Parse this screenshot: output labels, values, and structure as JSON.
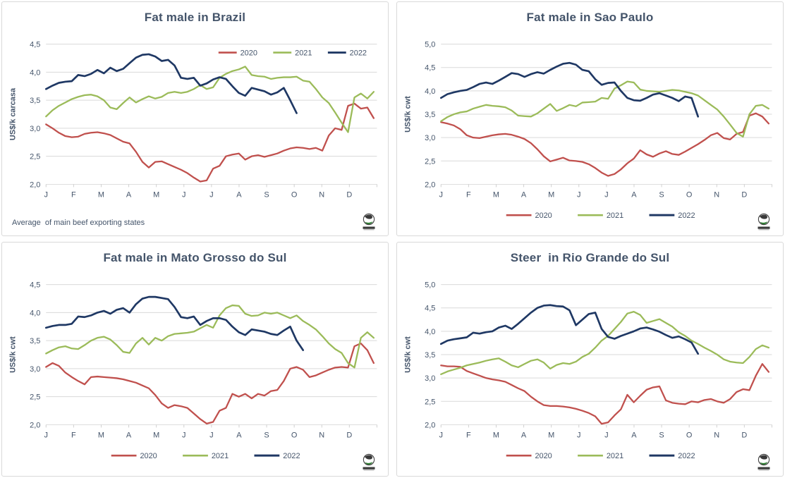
{
  "colors": {
    "series_2020": "#C0504D",
    "series_2021": "#9BBB59",
    "series_2022": "#1F3864",
    "gridline": "#D9D9D9",
    "axis_line": "#D0D0D0",
    "axis_text": "#44546A",
    "title_text": "#44546A",
    "panel_border": "#D9D9D9",
    "logo_dark": "#3A3A3A",
    "logo_green": "#2E7D32"
  },
  "months": [
    "J",
    "F",
    "M",
    "A",
    "M",
    "J",
    "J",
    "A",
    "S",
    "O",
    "N",
    "D"
  ],
  "legend_years": [
    "2020",
    "2021",
    "2022"
  ],
  "footnote": "Average  of main beef exporting states",
  "chart_data": [
    {
      "type": "line",
      "title": "Fat male in Brazil",
      "ylabel": "US$/k carcasa",
      "footnote": "Average  of main beef exporting states",
      "legend_position": "top-right",
      "ylim": [
        2.0,
        4.5
      ],
      "yticks": [
        {
          "value": 2.0,
          "label": "2,0"
        },
        {
          "value": 2.5,
          "label": "2,5"
        },
        {
          "value": 3.0,
          "label": "3,0"
        },
        {
          "value": 3.5,
          "label": "3,5"
        },
        {
          "value": 4.0,
          "label": "4,0"
        },
        {
          "value": 4.5,
          "label": "4,5"
        }
      ],
      "series": [
        {
          "name": "2020",
          "color": "series_2020",
          "values": [
            3.07,
            3.0,
            2.92,
            2.86,
            2.84,
            2.85,
            2.9,
            2.92,
            2.93,
            2.91,
            2.88,
            2.82,
            2.76,
            2.73,
            2.58,
            2.4,
            2.3,
            2.4,
            2.41,
            2.36,
            2.31,
            2.26,
            2.2,
            2.12,
            2.05,
            2.07,
            2.28,
            2.33,
            2.5,
            2.53,
            2.55,
            2.44,
            2.5,
            2.52,
            2.49,
            2.52,
            2.55,
            2.6,
            2.64,
            2.66,
            2.65,
            2.63,
            2.65,
            2.6,
            2.87,
            3.0,
            2.97,
            3.4,
            3.44,
            3.35,
            3.37,
            3.18
          ]
        },
        {
          "name": "2021",
          "color": "series_2021",
          "values": [
            3.21,
            3.32,
            3.4,
            3.46,
            3.52,
            3.56,
            3.59,
            3.6,
            3.57,
            3.5,
            3.37,
            3.34,
            3.45,
            3.55,
            3.46,
            3.52,
            3.57,
            3.53,
            3.56,
            3.63,
            3.65,
            3.63,
            3.65,
            3.7,
            3.77,
            3.7,
            3.73,
            3.9,
            3.97,
            4.02,
            4.05,
            4.1,
            3.95,
            3.93,
            3.92,
            3.88,
            3.9,
            3.91,
            3.91,
            3.92,
            3.85,
            3.83,
            3.7,
            3.55,
            3.45,
            3.28,
            3.1,
            2.93,
            3.55,
            3.62,
            3.53,
            3.65
          ]
        },
        {
          "name": "2022",
          "color": "series_2022",
          "values": [
            3.7,
            3.76,
            3.81,
            3.83,
            3.84,
            3.95,
            3.93,
            3.97,
            4.04,
            3.98,
            4.08,
            4.02,
            4.06,
            4.16,
            4.26,
            4.31,
            4.32,
            4.28,
            4.2,
            4.22,
            4.12,
            3.9,
            3.88,
            3.9,
            3.76,
            3.8,
            3.87,
            3.91,
            3.88,
            3.75,
            3.63,
            3.58,
            3.72,
            3.69,
            3.66,
            3.6,
            3.64,
            3.72,
            3.5,
            3.27
          ]
        }
      ]
    },
    {
      "type": "line",
      "title": "Fat male in Sao Paulo",
      "ylabel": "US$/k  cwt",
      "legend_position": "bottom",
      "ylim": [
        2.0,
        5.0
      ],
      "yticks": [
        {
          "value": 2.0,
          "label": "2,0"
        },
        {
          "value": 2.5,
          "label": "2,5"
        },
        {
          "value": 3.0,
          "label": "3,0"
        },
        {
          "value": 3.5,
          "label": "3,5"
        },
        {
          "value": 4.0,
          "label": "4,0"
        },
        {
          "value": 4.5,
          "label": "4,5"
        },
        {
          "value": 5.0,
          "label": "5,0"
        }
      ],
      "series": [
        {
          "name": "2020",
          "color": "series_2020",
          "values": [
            3.33,
            3.3,
            3.26,
            3.18,
            3.05,
            3.0,
            2.99,
            3.02,
            3.05,
            3.07,
            3.08,
            3.06,
            3.02,
            2.97,
            2.88,
            2.75,
            2.6,
            2.49,
            2.53,
            2.57,
            2.51,
            2.5,
            2.48,
            2.43,
            2.35,
            2.25,
            2.18,
            2.22,
            2.32,
            2.45,
            2.55,
            2.73,
            2.64,
            2.59,
            2.66,
            2.71,
            2.65,
            2.63,
            2.7,
            2.78,
            2.86,
            2.95,
            3.05,
            3.1,
            2.99,
            2.96,
            3.08,
            3.12,
            3.47,
            3.52,
            3.45,
            3.3
          ]
        },
        {
          "name": "2021",
          "color": "series_2021",
          "values": [
            3.35,
            3.44,
            3.5,
            3.54,
            3.56,
            3.62,
            3.66,
            3.7,
            3.68,
            3.67,
            3.65,
            3.58,
            3.47,
            3.46,
            3.45,
            3.52,
            3.62,
            3.72,
            3.57,
            3.63,
            3.7,
            3.67,
            3.75,
            3.76,
            3.77,
            3.85,
            3.83,
            4.05,
            4.12,
            4.2,
            4.18,
            4.03,
            4.0,
            3.99,
            3.98,
            4.0,
            4.02,
            4.01,
            3.98,
            3.95,
            3.9,
            3.8,
            3.7,
            3.6,
            3.45,
            3.28,
            3.1,
            3.02,
            3.5,
            3.68,
            3.7,
            3.62
          ]
        },
        {
          "name": "2022",
          "color": "series_2022",
          "values": [
            3.85,
            3.93,
            3.97,
            4.0,
            4.02,
            4.08,
            4.15,
            4.18,
            4.15,
            4.22,
            4.3,
            4.38,
            4.36,
            4.3,
            4.36,
            4.4,
            4.37,
            4.45,
            4.52,
            4.58,
            4.6,
            4.56,
            4.45,
            4.42,
            4.25,
            4.13,
            4.17,
            4.18,
            4.0,
            3.85,
            3.8,
            3.79,
            3.85,
            3.92,
            3.95,
            3.9,
            3.85,
            3.78,
            3.88,
            3.85,
            3.45
          ]
        }
      ]
    },
    {
      "type": "line",
      "title": "Fat male in Mato Grosso do Sul",
      "ylabel": "US$/k  cwt",
      "legend_position": "bottom",
      "ylim": [
        2.0,
        4.5
      ],
      "yticks": [
        {
          "value": 2.0,
          "label": "2,0"
        },
        {
          "value": 2.5,
          "label": "2,5"
        },
        {
          "value": 3.0,
          "label": "3,0"
        },
        {
          "value": 3.5,
          "label": "3,5"
        },
        {
          "value": 4.0,
          "label": "4,0"
        },
        {
          "value": 4.5,
          "label": "4,5"
        }
      ],
      "series": [
        {
          "name": "2020",
          "color": "series_2020",
          "values": [
            3.03,
            3.1,
            3.05,
            2.93,
            2.85,
            2.78,
            2.72,
            2.85,
            2.86,
            2.85,
            2.84,
            2.83,
            2.81,
            2.78,
            2.75,
            2.7,
            2.65,
            2.53,
            2.38,
            2.3,
            2.35,
            2.33,
            2.3,
            2.2,
            2.1,
            2.02,
            2.05,
            2.25,
            2.3,
            2.55,
            2.5,
            2.55,
            2.47,
            2.55,
            2.52,
            2.6,
            2.62,
            2.78,
            3.0,
            3.03,
            2.98,
            2.85,
            2.88,
            2.93,
            2.98,
            3.02,
            3.03,
            3.02,
            3.4,
            3.45,
            3.33,
            3.1
          ]
        },
        {
          "name": "2021",
          "color": "series_2021",
          "values": [
            3.27,
            3.33,
            3.38,
            3.4,
            3.36,
            3.35,
            3.42,
            3.5,
            3.55,
            3.57,
            3.52,
            3.42,
            3.3,
            3.28,
            3.45,
            3.55,
            3.43,
            3.55,
            3.5,
            3.58,
            3.62,
            3.63,
            3.64,
            3.66,
            3.72,
            3.78,
            3.73,
            3.95,
            4.08,
            4.13,
            4.12,
            3.98,
            3.94,
            3.95,
            4.0,
            3.98,
            4.0,
            3.95,
            3.9,
            3.95,
            3.85,
            3.78,
            3.7,
            3.58,
            3.45,
            3.35,
            3.28,
            3.1,
            3.02,
            3.55,
            3.65,
            3.55
          ]
        },
        {
          "name": "2022",
          "color": "series_2022",
          "values": [
            3.73,
            3.76,
            3.78,
            3.78,
            3.8,
            3.93,
            3.92,
            3.95,
            4.0,
            4.03,
            3.98,
            4.05,
            4.08,
            4.0,
            4.15,
            4.25,
            4.28,
            4.28,
            4.26,
            4.24,
            4.1,
            3.92,
            3.9,
            3.93,
            3.78,
            3.85,
            3.9,
            3.9,
            3.87,
            3.75,
            3.65,
            3.6,
            3.7,
            3.68,
            3.66,
            3.62,
            3.6,
            3.68,
            3.75,
            3.5,
            3.33
          ]
        }
      ]
    },
    {
      "type": "line",
      "title": "Steer  in Rio Grande do Sul",
      "ylabel": "US$/k  cwt",
      "legend_position": "bottom",
      "ylim": [
        2.0,
        5.0
      ],
      "yticks": [
        {
          "value": 2.0,
          "label": "2,0"
        },
        {
          "value": 2.5,
          "label": "2,5"
        },
        {
          "value": 3.0,
          "label": "3,0"
        },
        {
          "value": 3.5,
          "label": "3,5"
        },
        {
          "value": 4.0,
          "label": "4,0"
        },
        {
          "value": 4.5,
          "label": "4,5"
        },
        {
          "value": 5.0,
          "label": "5,0"
        }
      ],
      "series": [
        {
          "name": "2020",
          "color": "series_2020",
          "values": [
            3.27,
            3.25,
            3.25,
            3.24,
            3.15,
            3.1,
            3.05,
            3.0,
            2.97,
            2.95,
            2.92,
            2.85,
            2.78,
            2.72,
            2.6,
            2.5,
            2.42,
            2.4,
            2.4,
            2.39,
            2.37,
            2.34,
            2.3,
            2.25,
            2.18,
            2.02,
            2.05,
            2.2,
            2.33,
            2.64,
            2.48,
            2.62,
            2.75,
            2.8,
            2.82,
            2.52,
            2.47,
            2.45,
            2.44,
            2.5,
            2.48,
            2.53,
            2.55,
            2.5,
            2.47,
            2.55,
            2.7,
            2.76,
            2.74,
            3.05,
            3.3,
            3.13
          ]
        },
        {
          "name": "2021",
          "color": "series_2021",
          "values": [
            3.08,
            3.14,
            3.18,
            3.22,
            3.27,
            3.3,
            3.33,
            3.37,
            3.4,
            3.42,
            3.35,
            3.27,
            3.23,
            3.3,
            3.37,
            3.4,
            3.33,
            3.2,
            3.28,
            3.32,
            3.3,
            3.35,
            3.45,
            3.52,
            3.65,
            3.8,
            3.9,
            4.05,
            4.2,
            4.38,
            4.42,
            4.35,
            4.18,
            4.22,
            4.26,
            4.18,
            4.1,
            3.98,
            3.9,
            3.8,
            3.73,
            3.65,
            3.58,
            3.5,
            3.4,
            3.35,
            3.33,
            3.32,
            3.45,
            3.62,
            3.7,
            3.65
          ]
        },
        {
          "name": "2022",
          "color": "series_2022",
          "values": [
            3.73,
            3.8,
            3.83,
            3.85,
            3.87,
            3.97,
            3.95,
            3.98,
            4.0,
            4.08,
            4.12,
            4.05,
            4.16,
            4.28,
            4.4,
            4.5,
            4.55,
            4.56,
            4.54,
            4.53,
            4.45,
            4.13,
            4.25,
            4.37,
            4.4,
            4.05,
            3.88,
            3.84,
            3.9,
            3.95,
            4.0,
            4.06,
            4.08,
            4.04,
            3.99,
            3.92,
            3.86,
            3.89,
            3.83,
            3.76,
            3.52
          ]
        }
      ]
    }
  ]
}
